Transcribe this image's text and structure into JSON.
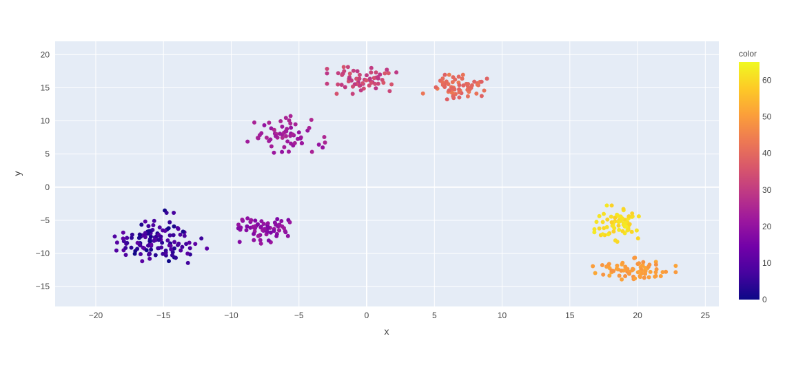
{
  "chart_data": {
    "type": "scatter",
    "xlabel": "x",
    "ylabel": "y",
    "xlim": [
      -23,
      26
    ],
    "ylim": [
      -18,
      22
    ],
    "xticks": [
      -20,
      -15,
      -10,
      -5,
      0,
      5,
      10,
      15,
      20,
      25
    ],
    "yticks": [
      -15,
      -10,
      -5,
      0,
      5,
      10,
      15,
      20
    ],
    "grid": true,
    "plot_background": "#E5ECF6",
    "colorbar": {
      "title": "color",
      "range": [
        0,
        65
      ],
      "ticks": [
        0,
        10,
        20,
        30,
        40,
        50,
        60
      ],
      "colorscale": [
        "#0d0887",
        "#46039f",
        "#7201a8",
        "#9c179e",
        "#bd3786",
        "#d8576b",
        "#ed7953",
        "#fb9f3a",
        "#fdca26",
        "#f0f921"
      ]
    },
    "clusters": [
      {
        "center": [
          -15.5,
          -8.0
        ],
        "spread": [
          1.9,
          2.3
        ],
        "n": 120,
        "color_range": [
          0,
          12
        ]
      },
      {
        "center": [
          -7.5,
          -6.0
        ],
        "spread": [
          1.6,
          1.3
        ],
        "n": 65,
        "color_range": [
          16,
          22
        ]
      },
      {
        "center": [
          -6.0,
          7.8
        ],
        "spread": [
          1.5,
          1.5
        ],
        "n": 60,
        "color_range": [
          20,
          26
        ]
      },
      {
        "center": [
          0.0,
          16.3
        ],
        "spread": [
          1.5,
          1.4
        ],
        "n": 65,
        "color_range": [
          28,
          36
        ]
      },
      {
        "center": [
          6.8,
          15.0
        ],
        "spread": [
          1.4,
          1.0
        ],
        "n": 60,
        "color_range": [
          38,
          44
        ]
      },
      {
        "center": [
          18.5,
          -5.5
        ],
        "spread": [
          1.3,
          1.4
        ],
        "n": 65,
        "color_range": [
          58,
          63
        ]
      },
      {
        "center": [
          19.5,
          -12.5
        ],
        "spread": [
          1.7,
          1.2
        ],
        "n": 70,
        "color_range": [
          48,
          52
        ]
      }
    ]
  }
}
